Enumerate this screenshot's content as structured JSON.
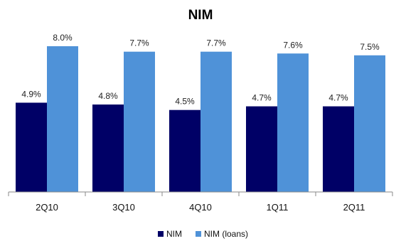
{
  "chart_data": {
    "type": "bar",
    "title": "NIM",
    "xlabel": "",
    "ylabel": "",
    "categories": [
      "2Q10",
      "3Q10",
      "4Q10",
      "1Q11",
      "2Q11"
    ],
    "series": [
      {
        "name": "NIM",
        "values": [
          4.9,
          4.8,
          4.5,
          4.7,
          4.7
        ],
        "labels": [
          "4.9%",
          "4.8%",
          "4.5%",
          "4.7%",
          "4.7%"
        ],
        "color": "#000066"
      },
      {
        "name": "NIM (loans)",
        "values": [
          8.0,
          7.7,
          7.7,
          7.6,
          7.5
        ],
        "labels": [
          "8.0%",
          "7.7%",
          "7.7%",
          "7.6%",
          "7.5%"
        ],
        "color": "#4f92d8"
      }
    ],
    "ylim": [
      0,
      8.0
    ],
    "grid": false,
    "legend_position": "bottom-center"
  }
}
